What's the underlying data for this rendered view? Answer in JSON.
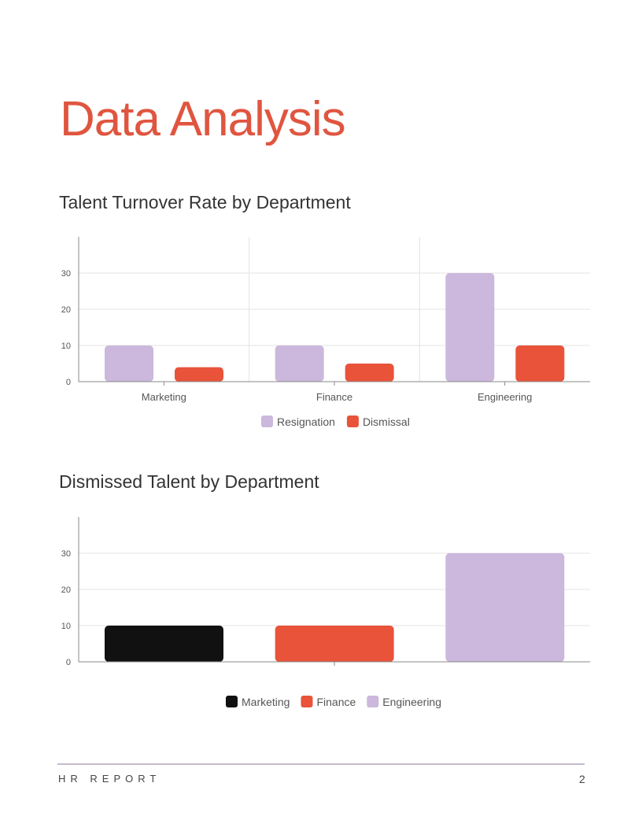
{
  "page": {
    "title": "Data Analysis",
    "footer_label": "HR REPORT",
    "page_number": "2"
  },
  "colors": {
    "accent": "#e0553f",
    "resignation": "#cbb8dc",
    "dismissal": "#e8533a",
    "marketing": "#111111"
  },
  "chart_data": [
    {
      "type": "bar",
      "title": "Talent Turnover Rate by Department",
      "categories": [
        "Marketing",
        "Finance",
        "Engineering"
      ],
      "series": [
        {
          "name": "Resignation",
          "values": [
            10,
            10,
            30
          ],
          "color": "#cbb8dc"
        },
        {
          "name": "Dismissal",
          "values": [
            4,
            5,
            10
          ],
          "color": "#e8533a"
        }
      ],
      "yticks": [
        0,
        10,
        20,
        30
      ],
      "ylim": [
        0,
        40
      ],
      "grid": true,
      "legend": "bottom"
    },
    {
      "type": "bar",
      "title": "Dismissed Talent by Department",
      "categories": [
        "Marketing",
        "Finance",
        "Engineering"
      ],
      "values": [
        10,
        10,
        30
      ],
      "colors": [
        "#111111",
        "#e8533a",
        "#cbb8dc"
      ],
      "legend_entries": [
        "Marketing",
        "Finance",
        "Engineering"
      ],
      "yticks": [
        0,
        10,
        20,
        30
      ],
      "ylim": [
        0,
        40
      ],
      "grid": true,
      "legend": "bottom"
    }
  ]
}
